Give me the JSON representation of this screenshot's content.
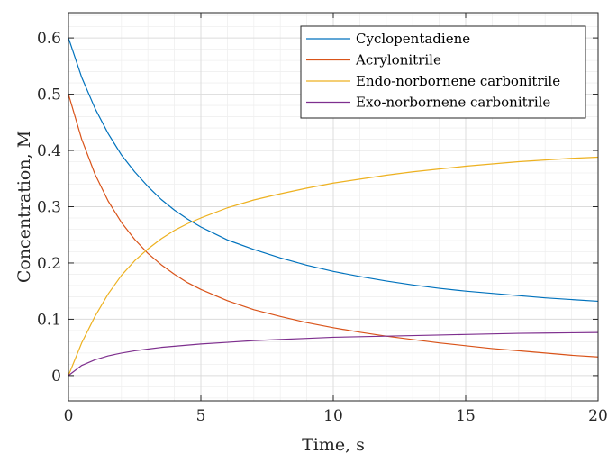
{
  "chart_data": {
    "type": "line",
    "xlabel": "Time, s",
    "ylabel": "Concentration, M",
    "xlim": [
      0,
      20
    ],
    "ylim": [
      -0.045,
      0.645
    ],
    "xticks": [
      0,
      5,
      10,
      15,
      20
    ],
    "xtick_labels": [
      "0",
      "5",
      "10",
      "15",
      "20"
    ],
    "yticks": [
      0,
      0.1,
      0.2,
      0.3,
      0.4,
      0.5,
      0.6
    ],
    "ytick_labels": [
      "0",
      "0.1",
      "0.2",
      "0.3",
      "0.4",
      "0.5",
      "0.6"
    ],
    "grid": true,
    "minor_grid": true,
    "legend_position": "top-right",
    "x": [
      0,
      0.5,
      1,
      1.5,
      2,
      2.5,
      3,
      3.5,
      4,
      4.5,
      5,
      6,
      7,
      8,
      9,
      10,
      11,
      12,
      13,
      14,
      15,
      16,
      17,
      18,
      19,
      20
    ],
    "series": [
      {
        "name": "Cyclopentadiene",
        "color": "#0072BD",
        "values": [
          0.6,
          0.53,
          0.475,
          0.43,
          0.392,
          0.362,
          0.336,
          0.313,
          0.294,
          0.278,
          0.264,
          0.241,
          0.224,
          0.209,
          0.196,
          0.185,
          0.176,
          0.168,
          0.161,
          0.155,
          0.15,
          0.146,
          0.142,
          0.138,
          0.135,
          0.132
        ]
      },
      {
        "name": "Acrylonitrile",
        "color": "#D95319",
        "values": [
          0.5,
          0.42,
          0.358,
          0.31,
          0.272,
          0.242,
          0.217,
          0.197,
          0.18,
          0.165,
          0.153,
          0.133,
          0.117,
          0.105,
          0.094,
          0.085,
          0.077,
          0.07,
          0.064,
          0.058,
          0.053,
          0.048,
          0.044,
          0.04,
          0.036,
          0.033
        ]
      },
      {
        "name": "Endo-norbornene carbonitrile",
        "color": "#EDB120",
        "values": [
          0.0,
          0.058,
          0.105,
          0.145,
          0.178,
          0.204,
          0.225,
          0.243,
          0.258,
          0.27,
          0.28,
          0.298,
          0.312,
          0.323,
          0.333,
          0.342,
          0.349,
          0.356,
          0.362,
          0.367,
          0.372,
          0.376,
          0.38,
          0.383,
          0.386,
          0.388
        ]
      },
      {
        "name": "Exo-norbornene carbonitrile",
        "color": "#7E2F8E",
        "values": [
          0.0,
          0.018,
          0.028,
          0.035,
          0.04,
          0.044,
          0.047,
          0.05,
          0.052,
          0.054,
          0.056,
          0.059,
          0.062,
          0.064,
          0.066,
          0.068,
          0.069,
          0.07,
          0.071,
          0.072,
          0.073,
          0.074,
          0.075,
          0.0755,
          0.076,
          0.0765
        ]
      }
    ]
  }
}
